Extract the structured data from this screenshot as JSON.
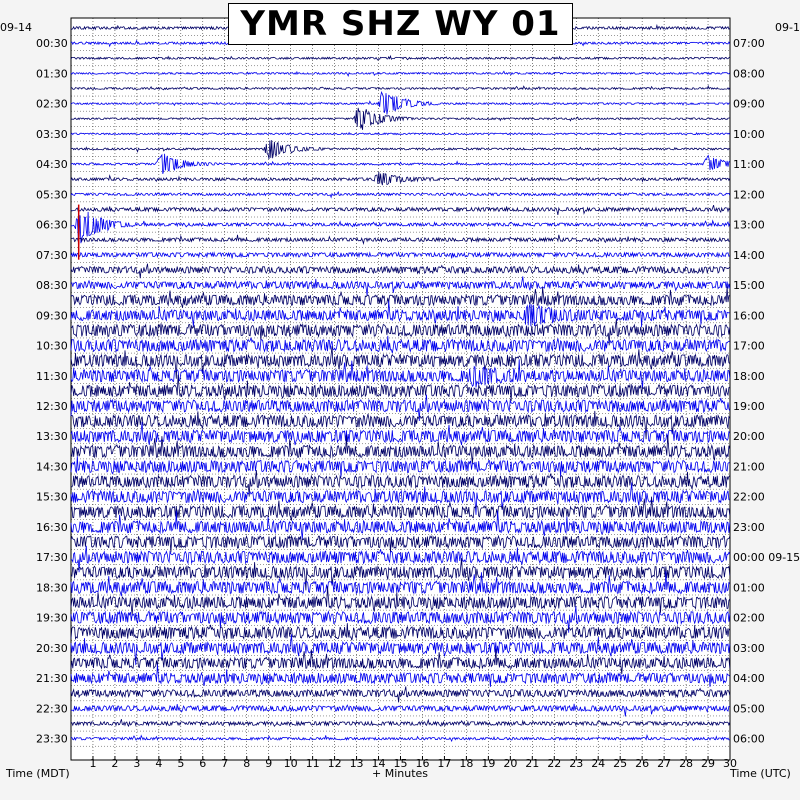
{
  "chart_data": {
    "type": "line",
    "title": "YMR SHZ WY 01",
    "xlabel": "+ Minutes",
    "left_axis_label": "Time (MDT)",
    "right_axis_label": "Time (UTC)",
    "left_start_date": "09-14",
    "right_start_date": "09-1",
    "right_date_change": "09-15",
    "x_range": [
      0,
      30
    ],
    "x_ticks": [
      "1",
      "2",
      "3",
      "4",
      "5",
      "6",
      "7",
      "8",
      "9",
      "10",
      "11",
      "12",
      "13",
      "14",
      "15",
      "16",
      "17",
      "18",
      "19",
      "20",
      "21",
      "22",
      "23",
      "24",
      "25",
      "26",
      "27",
      "28",
      "29",
      "30"
    ],
    "left_hour_labels": [
      "00:30",
      "01:30",
      "02:30",
      "03:30",
      "04:30",
      "05:30",
      "06:30",
      "07:30",
      "08:30",
      "09:30",
      "10:30",
      "11:30",
      "12:30",
      "13:30",
      "14:30",
      "15:30",
      "16:30",
      "17:30",
      "18:30",
      "19:30",
      "20:30",
      "21:30",
      "22:30",
      "23:30"
    ],
    "right_hour_labels": [
      "07:00",
      "08:00",
      "09:00",
      "10:00",
      "11:00",
      "12:00",
      "13:00",
      "14:00",
      "15:00",
      "16:00",
      "17:00",
      "18:00",
      "19:00",
      "20:00",
      "21:00",
      "22:00",
      "23:00",
      "00:00 09-15",
      "01:00",
      "02:00",
      "03:00",
      "04:00",
      "05:00",
      "06:00"
    ],
    "rows_per_hour": 2,
    "trace_count": 48,
    "trace_colors": [
      "#000066",
      "#0000ee"
    ],
    "relative_amplitude": [
      0.22,
      0.18,
      0.16,
      0.14,
      0.15,
      0.14,
      0.14,
      0.13,
      0.15,
      0.15,
      0.22,
      0.2,
      0.3,
      0.25,
      0.3,
      0.35,
      0.55,
      0.6,
      0.85,
      0.9,
      1.0,
      1.0,
      1.0,
      1.0,
      1.0,
      1.0,
      1.0,
      1.0,
      1.0,
      1.0,
      1.0,
      1.0,
      1.0,
      1.0,
      1.0,
      1.0,
      1.0,
      1.0,
      1.0,
      1.0,
      1.0,
      0.95,
      0.9,
      0.85,
      0.6,
      0.45,
      0.3,
      0.2
    ],
    "events": [
      {
        "trace": 5,
        "minute": 14.2,
        "strength": 3.0
      },
      {
        "trace": 6,
        "minute": 13.1,
        "strength": 3.0
      },
      {
        "trace": 8,
        "minute": 9.0,
        "strength": 2.2
      },
      {
        "trace": 9,
        "minute": 4.1,
        "strength": 2.5
      },
      {
        "trace": 9,
        "minute": 29.0,
        "strength": 1.8
      },
      {
        "trace": 10,
        "minute": 14.0,
        "strength": 1.5
      },
      {
        "trace": 13,
        "minute": 0.4,
        "strength": 4.0
      },
      {
        "trace": 19,
        "minute": 20.8,
        "strength": 2.0
      },
      {
        "trace": 23,
        "minute": 18.3,
        "strength": 1.6
      }
    ],
    "clipped_marks": [
      {
        "trace": 13,
        "minute": 0.35
      },
      {
        "trace": 14,
        "minute": 0.35
      }
    ],
    "clip_color": "#cc0000",
    "grid": true
  }
}
